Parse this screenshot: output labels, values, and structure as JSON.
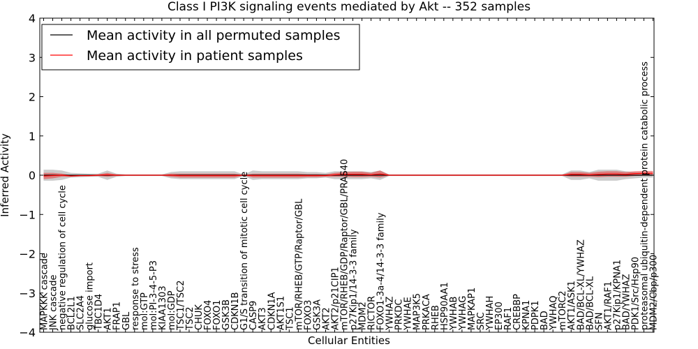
{
  "chart_data": {
    "type": "line",
    "title": "Class I PI3K signaling events mediated by Akt -- 352 samples",
    "xlabel": "Cellular Entities",
    "ylabel": "Inferred Activity",
    "ylim": [
      -4,
      4
    ],
    "yticks": [
      -4,
      -3,
      -2,
      -1,
      0,
      1,
      2,
      3,
      4
    ],
    "ytick_labels": [
      "−4",
      "−3",
      "−2",
      "−1",
      "0",
      "1",
      "2",
      "3",
      "4"
    ],
    "grid": false,
    "legend_position": "top-left",
    "categories": [
      "MAPKKK cascade",
      "JNK cascade",
      "negative regulation of cell cycle",
      "BCL2L1",
      "SLC2A4",
      "glucose import",
      "TBC1D4",
      "AKT1",
      "FRAP1",
      "GBL",
      "response to stress",
      "mol:GTP",
      "mol:PI-3-4-5-P3",
      "KIAA1303",
      "mol:GDP",
      "TSC1/TSC2",
      "TSC2",
      "CHUK",
      "FOXO4",
      "FOXO1",
      "GSK3B",
      "CDKN1B",
      "G1/S transition of mitotic cell cycle",
      "CASP9",
      "AKT3",
      "CDKN1A",
      "AKT1S1",
      "TSC1",
      "mTOR/RHEB/GTP/Raptor/GBL",
      "FOXO3",
      "GSK3A",
      "AKT2",
      "AKT2/p21CIP1",
      "mTOR/RHEB/GDP/Raptor/GBL/PRAS40",
      "p27Kip1/14-3-3 family",
      "MDM2",
      "RICTOR",
      "FOXO1-3a-4/14-3-3 family",
      "YWHAZ",
      "PRKDC",
      "YWHAE",
      "MAP3K5",
      "PRKACA",
      "RHEB",
      "HSP90AA1",
      "YWHAB",
      "YWHAG",
      "MAPKAP1",
      "SRC",
      "YWHAH",
      "EP300",
      "RAF1",
      "CREBBP",
      "KPNA1",
      "PDPK1",
      "BAD",
      "YWHAQ",
      "mTORC2",
      "AKT1/ASK1",
      "BAD/BCL-XL/YWHAZ",
      "BAD/BCL-XL",
      "SFN",
      "AKT1/RAF1",
      "p27Kip1/KPNA1",
      "BAD/YWHAZ",
      "PDK1/Src/Hsp90",
      "proteasomal ubiquitin-dependent protein catabolic process",
      "MDM2/Cbp/p300"
    ],
    "series": [
      {
        "name": "Mean activity in all permuted samples",
        "color": "#000000",
        "values": [
          0.0,
          0.0,
          0.0,
          0.0,
          0.0,
          0.0,
          0.0,
          0.0,
          0.0,
          0.0,
          0.0,
          0.0,
          0.0,
          0.0,
          0.0,
          0.0,
          0.0,
          0.0,
          0.0,
          0.0,
          0.0,
          0.0,
          0.0,
          0.0,
          0.0,
          0.0,
          0.0,
          0.0,
          0.0,
          0.0,
          0.0,
          0.0,
          0.0,
          0.0,
          0.0,
          0.0,
          0.0,
          0.0,
          0.0,
          0.0,
          0.0,
          0.0,
          0.0,
          0.0,
          0.0,
          0.0,
          0.0,
          0.0,
          0.0,
          0.0,
          0.0,
          0.0,
          0.0,
          0.0,
          0.0,
          0.0,
          0.0,
          0.0,
          0.0,
          0.0,
          0.0,
          0.0,
          0.0,
          0.0,
          0.0,
          0.0,
          0.0,
          0.0
        ],
        "band": [
          0.14,
          0.14,
          0.12,
          0.06,
          0.05,
          0.04,
          0.04,
          0.12,
          0.04,
          0.02,
          0.02,
          0.02,
          0.02,
          0.02,
          0.08,
          0.1,
          0.1,
          0.1,
          0.1,
          0.1,
          0.1,
          0.1,
          0.02,
          0.12,
          0.1,
          0.1,
          0.1,
          0.1,
          0.1,
          0.08,
          0.08,
          0.06,
          0.1,
          0.1,
          0.1,
          0.1,
          0.08,
          0.12,
          0.02,
          0.02,
          0.02,
          0.02,
          0.02,
          0.02,
          0.02,
          0.02,
          0.02,
          0.02,
          0.02,
          0.02,
          0.02,
          0.02,
          0.02,
          0.02,
          0.02,
          0.02,
          0.02,
          0.02,
          0.12,
          0.12,
          0.08,
          0.14,
          0.14,
          0.14,
          0.1,
          0.08,
          0.06,
          0.06
        ]
      },
      {
        "name": "Mean activity in patient samples",
        "color": "#ff0000",
        "values": [
          -0.02,
          -0.01,
          0.0,
          -0.02,
          -0.01,
          -0.01,
          0.0,
          0.01,
          0.0,
          0.0,
          0.0,
          0.0,
          0.0,
          0.0,
          0.0,
          -0.01,
          -0.01,
          -0.01,
          -0.01,
          -0.01,
          -0.01,
          -0.01,
          0.0,
          -0.01,
          -0.01,
          -0.01,
          -0.01,
          -0.01,
          -0.01,
          -0.01,
          -0.01,
          -0.01,
          0.01,
          0.02,
          0.02,
          0.02,
          0.01,
          0.03,
          0.0,
          0.0,
          0.0,
          0.0,
          0.0,
          0.0,
          0.0,
          0.0,
          0.0,
          0.0,
          0.0,
          0.0,
          0.0,
          0.0,
          0.0,
          0.0,
          0.0,
          0.0,
          0.0,
          0.0,
          0.02,
          0.02,
          0.01,
          0.02,
          0.03,
          0.03,
          0.02,
          0.04,
          0.05,
          0.05
        ],
        "band": [
          0.08,
          0.07,
          0.04,
          0.02,
          0.02,
          0.02,
          0.02,
          0.05,
          0.02,
          0.01,
          0.01,
          0.01,
          0.01,
          0.01,
          0.04,
          0.05,
          0.05,
          0.05,
          0.05,
          0.05,
          0.05,
          0.05,
          0.01,
          0.05,
          0.05,
          0.05,
          0.05,
          0.05,
          0.05,
          0.04,
          0.04,
          0.03,
          0.05,
          0.06,
          0.07,
          0.07,
          0.05,
          0.09,
          0.01,
          0.01,
          0.01,
          0.01,
          0.01,
          0.01,
          0.01,
          0.01,
          0.01,
          0.01,
          0.01,
          0.01,
          0.01,
          0.01,
          0.01,
          0.01,
          0.01,
          0.01,
          0.01,
          0.01,
          0.06,
          0.06,
          0.05,
          0.07,
          0.07,
          0.07,
          0.06,
          0.06,
          0.06,
          0.06
        ]
      }
    ]
  }
}
